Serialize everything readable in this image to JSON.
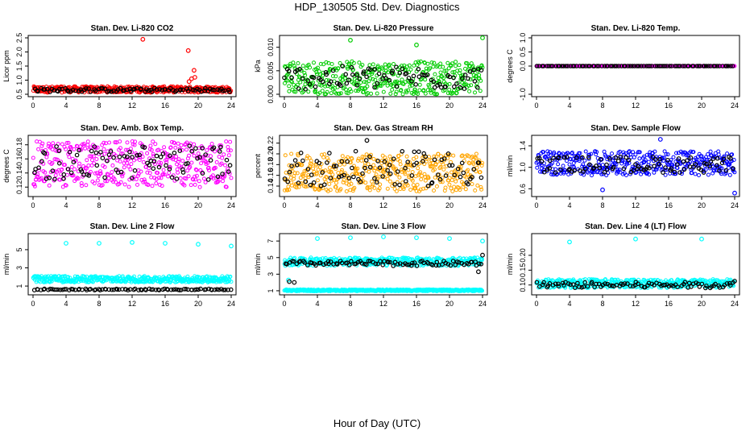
{
  "title": "HDP_130505  Std. Dev. Diagnostics",
  "xlabel": "Hour of Day (UTC)",
  "colors": {
    "co2": "#ff0000",
    "pressure": "#00cc00",
    "temp": "#ff00ff",
    "box_temp": "#ff00ff",
    "rh": "#ffa500",
    "sample_flow": "#0000ff",
    "line_flow": "#00ffff",
    "reference": "#000000"
  },
  "chart_data": [
    {
      "type": "scatter",
      "title": "Stan. Dev. Li-820 CO2",
      "ylabel": "Licor ppm",
      "xlim": [
        0,
        24
      ],
      "ylim": [
        0.5,
        2.5
      ],
      "xticks": [
        0,
        4,
        8,
        12,
        16,
        20,
        24
      ],
      "yticks": [
        "0.5",
        "1.0",
        "1.5",
        "2.0",
        "2.5"
      ],
      "ytick_values": [
        0.5,
        1.0,
        1.5,
        2.0,
        2.5
      ],
      "series": [
        {
          "color": "#ff0000",
          "band": [
            0.56,
            0.78
          ],
          "outliers": [
            [
              13.3,
              2.45
            ],
            [
              18.8,
              2.05
            ],
            [
              19.5,
              1.35
            ],
            [
              18.9,
              0.95
            ],
            [
              19.2,
              1.05
            ],
            [
              19.6,
              1.1
            ]
          ]
        },
        {
          "color": "#000000",
          "band": [
            0.58,
            0.72
          ],
          "outliers": []
        }
      ]
    },
    {
      "type": "scatter",
      "title": "Stan. Dev. Li-820 Pressure",
      "ylabel": "kPa",
      "xlim": [
        0,
        24
      ],
      "ylim": [
        0.0,
        0.012
      ],
      "xticks": [
        0,
        4,
        8,
        12,
        16,
        20,
        24
      ],
      "yticks": [
        "0.000",
        "0.005",
        "0.010"
      ],
      "ytick_values": [
        0.0,
        0.005,
        0.01
      ],
      "series": [
        {
          "color": "#00cc00",
          "band": [
            0.0,
            0.007
          ],
          "outliers": [
            [
              8.0,
              0.0115
            ],
            [
              16.0,
              0.0105
            ],
            [
              24.0,
              0.012
            ]
          ]
        },
        {
          "color": "#000000",
          "band": [
            0.001,
            0.006
          ],
          "outliers": []
        }
      ]
    },
    {
      "type": "scatter",
      "title": "Stan. Dev. Li-820 Temp.",
      "ylabel": "degrees C",
      "xlim": [
        0,
        24
      ],
      "ylim": [
        -1.0,
        1.0
      ],
      "xticks": [
        0,
        4,
        8,
        12,
        16,
        20,
        24
      ],
      "yticks": [
        "-1.0",
        "0.0",
        "0.5",
        "1.0"
      ],
      "ytick_values": [
        -1.0,
        0.0,
        0.5,
        1.0
      ],
      "series": [
        {
          "color": "#ff00ff",
          "band": [
            0.0,
            0.0
          ],
          "outliers": []
        },
        {
          "color": "#000000",
          "band": [
            0.0,
            0.0
          ],
          "outliers": []
        }
      ]
    },
    {
      "type": "scatter",
      "title": "Stan. Dev. Amb. Box Temp.",
      "ylabel": "degrees C",
      "xlim": [
        0,
        24
      ],
      "ylim": [
        0.11,
        0.19
      ],
      "xticks": [
        0,
        4,
        8,
        12,
        16,
        20,
        24
      ],
      "yticks": [
        "0.12",
        "0.14",
        "0.16",
        "0.18"
      ],
      "ytick_values": [
        0.12,
        0.14,
        0.16,
        0.18
      ],
      "series": [
        {
          "color": "#ff00ff",
          "band": [
            0.12,
            0.185
          ],
          "outliers": []
        },
        {
          "color": "#000000",
          "band": [
            0.13,
            0.18
          ],
          "outliers": []
        }
      ]
    },
    {
      "type": "scatter",
      "title": "Stan. Dev. Gas Stream RH",
      "ylabel": "percent",
      "xlim": [
        0,
        24
      ],
      "ylim": [
        0.125,
        0.23
      ],
      "xticks": [
        0,
        4,
        8,
        12,
        16,
        20,
        24
      ],
      "yticks": [
        "0.14",
        "0.16",
        "0.18",
        "0.20",
        "0.22"
      ],
      "ytick_values": [
        0.14,
        0.16,
        0.18,
        0.2,
        0.22
      ],
      "series": [
        {
          "color": "#ffa500",
          "band": [
            0.13,
            0.2
          ],
          "outliers": []
        },
        {
          "color": "#000000",
          "band": [
            0.14,
            0.205
          ],
          "outliers": [
            [
              10.0,
              0.225
            ]
          ]
        }
      ]
    },
    {
      "type": "scatter",
      "title": "Stan. Dev. Sample Flow",
      "ylabel": "ml/min",
      "xlim": [
        0,
        24
      ],
      "ylim": [
        0.5,
        1.55
      ],
      "xticks": [
        0,
        4,
        8,
        12,
        16,
        20,
        24
      ],
      "yticks": [
        "0.6",
        "1.0",
        "1.4"
      ],
      "ytick_values": [
        0.6,
        1.0,
        1.4
      ],
      "series": [
        {
          "color": "#0000ff",
          "band": [
            0.85,
            1.3
          ],
          "outliers": [
            [
              15.0,
              1.52
            ],
            [
              24.0,
              0.52
            ],
            [
              8.0,
              0.58
            ]
          ]
        },
        {
          "color": "#000000",
          "band": [
            0.9,
            1.2
          ],
          "outliers": []
        }
      ]
    },
    {
      "type": "scatter",
      "title": "Stan. Dev. Line 2 Flow",
      "ylabel": "ml/min",
      "xlim": [
        0,
        24
      ],
      "ylim": [
        0.3,
        6.5
      ],
      "xticks": [
        0,
        4,
        8,
        12,
        16,
        20,
        24
      ],
      "yticks": [
        "1",
        "3",
        "5"
      ],
      "ytick_values": [
        1,
        3,
        5
      ],
      "series": [
        {
          "color": "#00ffff",
          "band": [
            1.4,
            2.1
          ],
          "outliers": [
            [
              4.0,
              5.7
            ],
            [
              8.0,
              5.7
            ],
            [
              12.0,
              5.8
            ],
            [
              16.0,
              5.7
            ],
            [
              20.0,
              5.6
            ],
            [
              24.0,
              5.4
            ]
          ]
        },
        {
          "color": "#000000",
          "band": [
            0.55,
            0.7
          ],
          "outliers": []
        }
      ]
    },
    {
      "type": "scatter",
      "title": "Stan. Dev. Line 3 Flow",
      "ylabel": "ml/min",
      "xlim": [
        0,
        24
      ],
      "ylim": [
        0.8,
        7.6
      ],
      "xticks": [
        0,
        4,
        8,
        12,
        16,
        20,
        24
      ],
      "yticks": [
        "1",
        "3",
        "5",
        "7"
      ],
      "ytick_values": [
        1,
        3,
        5,
        7
      ],
      "series": [
        {
          "color": "#00ffff",
          "band": [
            4.0,
            5.0
          ],
          "outliers": [
            [
              4.0,
              7.3
            ],
            [
              8.0,
              7.4
            ],
            [
              12.0,
              7.5
            ],
            [
              16.0,
              7.4
            ],
            [
              20.0,
              7.3
            ],
            [
              24.0,
              7.0
            ],
            [
              0.5,
              2.3
            ]
          ]
        },
        {
          "color": "#000000",
          "band": [
            4.0,
            4.6
          ],
          "outliers": [
            [
              0.6,
              2.1
            ],
            [
              1.2,
              2.0
            ],
            [
              23.5,
              3.3
            ],
            [
              24.0,
              5.3
            ]
          ]
        },
        {
          "color": "#00ffff",
          "band": [
            0.95,
            1.15
          ],
          "outliers": []
        }
      ]
    },
    {
      "type": "scatter",
      "title": "Stan. Dev. Line 4 (LT) Flow",
      "ylabel": "ml/min",
      "xlim": [
        0,
        24
      ],
      "ylim": [
        0.075,
        0.265
      ],
      "xticks": [
        0,
        4,
        8,
        12,
        16,
        20,
        24
      ],
      "yticks": [
        "0.10",
        "0.15",
        "0.20"
      ],
      "ytick_values": [
        0.1,
        0.15,
        0.2
      ],
      "series": [
        {
          "color": "#00ffff",
          "band": [
            0.09,
            0.12
          ],
          "outliers": [
            [
              4.0,
              0.245
            ],
            [
              12.0,
              0.255
            ],
            [
              20.0,
              0.255
            ]
          ]
        },
        {
          "color": "#000000",
          "band": [
            0.09,
            0.11
          ],
          "outliers": [
            [
              24.0,
              0.113
            ]
          ]
        }
      ]
    }
  ]
}
